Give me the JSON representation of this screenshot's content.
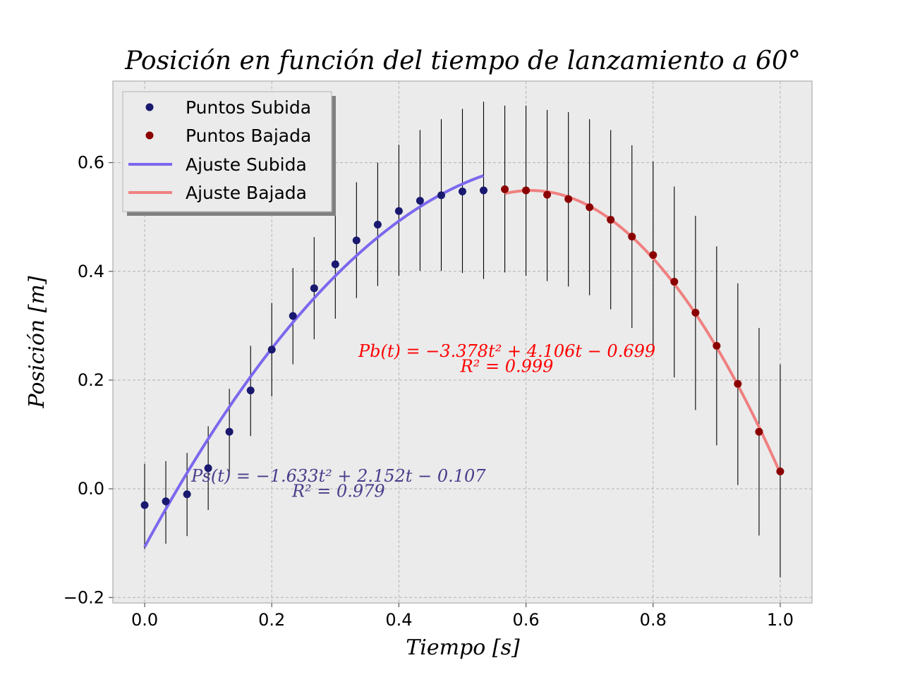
{
  "chart_data": {
    "type": "scatter",
    "title": "Posición en función del tiempo de lanzamiento a 60°",
    "xlabel": "Tiempo [s]",
    "ylabel": "Posición [m]",
    "xlim": [
      -0.05,
      1.05
    ],
    "ylim": [
      -0.21,
      0.75
    ],
    "x_ticks": [
      "0.0",
      "0.2",
      "0.4",
      "0.6",
      "0.8",
      "1.0"
    ],
    "x_tick_values": [
      0.0,
      0.2,
      0.4,
      0.6,
      0.8,
      1.0
    ],
    "y_ticks": [
      "−0.2",
      "0.0",
      "0.2",
      "0.4",
      "0.6"
    ],
    "y_tick_values": [
      -0.2,
      0.0,
      0.2,
      0.4,
      0.6
    ],
    "grid": true,
    "legend_position": "upper-left",
    "series": [
      {
        "name": "Puntos Subida",
        "kind": "points",
        "color": "#191970",
        "x": [
          0.0,
          0.0333,
          0.0667,
          0.1,
          0.1333,
          0.1667,
          0.2,
          0.2333,
          0.2667,
          0.3,
          0.3333,
          0.3667,
          0.4,
          0.4333,
          0.4667,
          0.5,
          0.5333
        ],
        "y": [
          -0.03,
          -0.023,
          -0.01,
          0.038,
          0.105,
          0.181,
          0.256,
          0.318,
          0.369,
          0.413,
          0.457,
          0.486,
          0.511,
          0.53,
          0.54,
          0.547,
          0.549
        ],
        "yerr_low": [
          -0.111,
          -0.101,
          -0.087,
          -0.039,
          0.027,
          0.097,
          0.17,
          0.229,
          0.275,
          0.313,
          0.351,
          0.373,
          0.392,
          0.401,
          0.401,
          0.397,
          0.386
        ],
        "yerr_high": [
          0.046,
          0.051,
          0.066,
          0.115,
          0.184,
          0.263,
          0.342,
          0.406,
          0.463,
          0.512,
          0.564,
          0.6,
          0.633,
          0.66,
          0.68,
          0.699,
          0.712
        ]
      },
      {
        "name": "Puntos Bajada",
        "kind": "points",
        "color": "#8b0000",
        "x": [
          0.5667,
          0.6,
          0.6333,
          0.6667,
          0.7,
          0.7333,
          0.7667,
          0.8,
          0.8333,
          0.8667,
          0.9,
          0.9333,
          0.9667,
          1.0
        ],
        "y": [
          0.551,
          0.549,
          0.541,
          0.533,
          0.518,
          0.495,
          0.464,
          0.43,
          0.381,
          0.324,
          0.263,
          0.193,
          0.105,
          0.032
        ],
        "yerr_low": [
          0.398,
          0.392,
          0.382,
          0.372,
          0.356,
          0.33,
          0.296,
          0.257,
          0.205,
          0.145,
          0.08,
          0.007,
          -0.086,
          -0.163
        ],
        "yerr_high": [
          0.705,
          0.705,
          0.697,
          0.693,
          0.68,
          0.66,
          0.632,
          0.602,
          0.556,
          0.502,
          0.446,
          0.378,
          0.296,
          0.229
        ]
      },
      {
        "name": "Ajuste Subida",
        "kind": "fit",
        "color": "#7b68ee",
        "domain": [
          0.0,
          0.5333
        ],
        "coefficients": [
          -1.633,
          2.152,
          -0.107
        ]
      },
      {
        "name": "Ajuste Bajada",
        "kind": "fit",
        "color": "#f08080",
        "domain": [
          0.5667,
          1.0
        ],
        "coefficients": [
          -3.378,
          4.106,
          -0.699
        ]
      }
    ],
    "annotations": [
      {
        "text": "Pb(t) = −3.378t² + 4.106t − 0.699",
        "color": "#ff0000",
        "x": 0.57,
        "y": 0.243
      },
      {
        "text": "R² = 0.999",
        "color": "#ff0000",
        "x": 0.57,
        "y": 0.215
      },
      {
        "text": "Ps(t) = −1.633t² + 2.152t − 0.107",
        "color": "#483d8b",
        "x": 0.305,
        "y": 0.013
      },
      {
        "text": "R² = 0.979",
        "color": "#483d8b",
        "x": 0.305,
        "y": -0.015
      }
    ]
  }
}
